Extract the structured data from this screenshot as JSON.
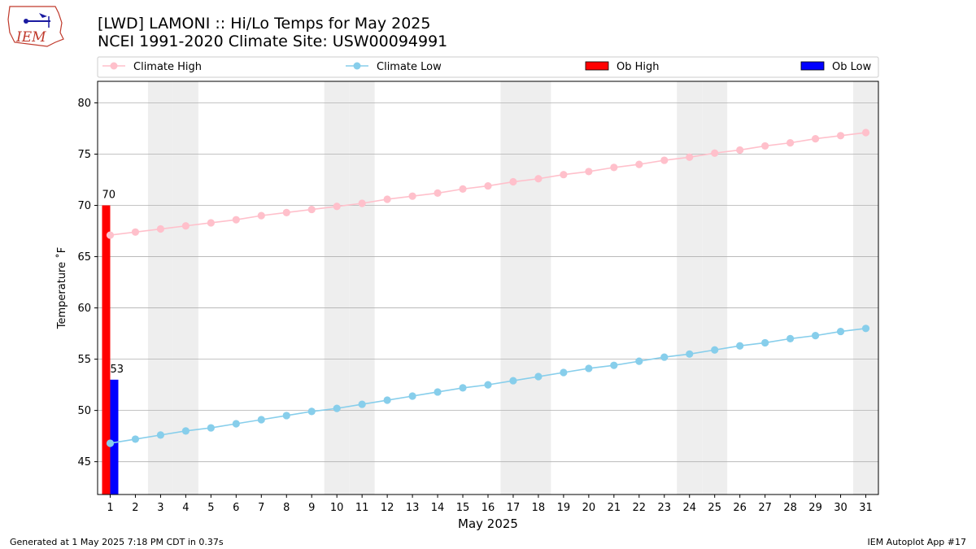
{
  "title_line1": "[LWD] LAMONI :: Hi/Lo Temps for May 2025",
  "title_line2": "NCEI 1991-2020 Climate Site: USW00094991",
  "logo_text": "IEM",
  "footer_left": "Generated at 1 May 2025 7:18 PM CDT in 0.37s",
  "footer_right": "IEM Autoplot App #17",
  "colors": {
    "climate_high": "#ffc0cb",
    "climate_low": "#87ceeb",
    "ob_high": "#ff0000",
    "ob_low": "#0000ff",
    "weekend_shade": "#eeeeee",
    "grid": "#b0b0b0"
  },
  "chart_data": {
    "type": "line",
    "xlabel": "May 2025",
    "ylabel": "Temperature ˚F",
    "xlim": [
      0.5,
      31.5
    ],
    "ylim": [
      41.8,
      82.1
    ],
    "yticks": [
      45,
      50,
      55,
      60,
      65,
      70,
      75,
      80
    ],
    "x": [
      1,
      2,
      3,
      4,
      5,
      6,
      7,
      8,
      9,
      10,
      11,
      12,
      13,
      14,
      15,
      16,
      17,
      18,
      19,
      20,
      21,
      22,
      23,
      24,
      25,
      26,
      27,
      28,
      29,
      30,
      31
    ],
    "weekend_days": [
      3,
      4,
      10,
      11,
      17,
      18,
      24,
      25,
      31
    ],
    "grid": true,
    "legend": [
      "Climate High",
      "Climate Low",
      "Ob High",
      "Ob Low"
    ],
    "legend_position": "top",
    "series": [
      {
        "name": "Climate High",
        "kind": "line",
        "values": [
          67.1,
          67.4,
          67.7,
          68.0,
          68.3,
          68.6,
          69.0,
          69.3,
          69.6,
          69.9,
          70.2,
          70.6,
          70.9,
          71.2,
          71.6,
          71.9,
          72.3,
          72.6,
          73.0,
          73.3,
          73.7,
          74.0,
          74.4,
          74.7,
          75.1,
          75.4,
          75.8,
          76.1,
          76.5,
          76.8,
          77.1
        ]
      },
      {
        "name": "Climate Low",
        "kind": "line",
        "values": [
          46.8,
          47.2,
          47.6,
          48.0,
          48.3,
          48.7,
          49.1,
          49.5,
          49.9,
          50.2,
          50.6,
          51.0,
          51.4,
          51.8,
          52.2,
          52.5,
          52.9,
          53.3,
          53.7,
          54.1,
          54.4,
          54.8,
          55.2,
          55.5,
          55.9,
          56.3,
          56.6,
          57.0,
          57.3,
          57.7,
          58.0
        ]
      },
      {
        "name": "Ob High",
        "kind": "bar",
        "x": [
          1
        ],
        "values": [
          70
        ],
        "labels": [
          "70"
        ]
      },
      {
        "name": "Ob Low",
        "kind": "bar",
        "x": [
          1
        ],
        "values": [
          53
        ],
        "labels": [
          "53"
        ]
      }
    ]
  }
}
